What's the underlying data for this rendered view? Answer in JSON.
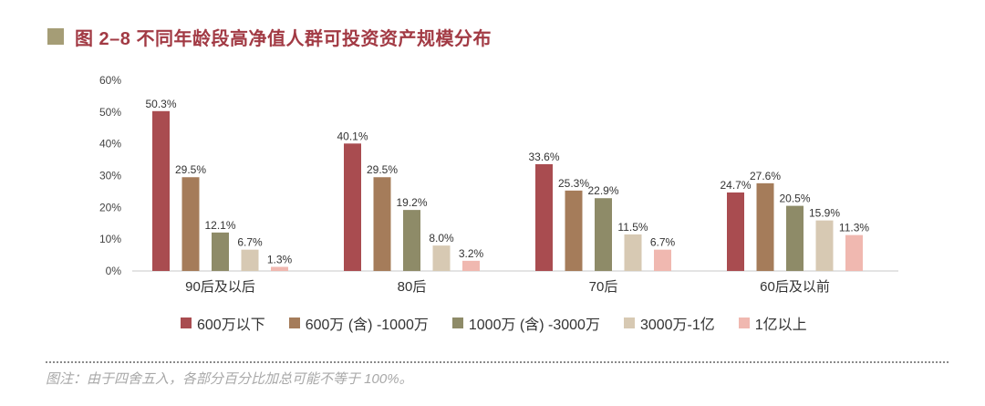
{
  "title": {
    "label": "图 2–8  不同年龄段高净值人群可投资资产规模分布",
    "marker_color": "#a59d76",
    "color": "#a23a44"
  },
  "chart_data": {
    "type": "bar",
    "categories": [
      "90后及以后",
      "80后",
      "70后",
      "60后及以前"
    ],
    "series": [
      {
        "name": "600万以下",
        "color": "#a94c50",
        "values": [
          50.3,
          40.1,
          33.6,
          24.7
        ],
        "labels": [
          "50.3%",
          "40.1%",
          "33.6%",
          "24.7%"
        ]
      },
      {
        "name": "600万 (含) -1000万",
        "color": "#a57c5a",
        "values": [
          29.5,
          29.5,
          25.3,
          27.6
        ],
        "labels": [
          "29.5%",
          "29.5%",
          "25.3%",
          "27.6%"
        ]
      },
      {
        "name": "1000万 (含) -3000万",
        "color": "#8e8b68",
        "values": [
          12.1,
          19.2,
          22.9,
          20.5
        ],
        "labels": [
          "12.1%",
          "19.2%",
          "22.9%",
          "20.5%"
        ]
      },
      {
        "name": "3000万-1亿",
        "color": "#d7c9b3",
        "values": [
          6.7,
          8.0,
          11.5,
          15.9
        ],
        "labels": [
          "6.7%",
          "8.0%",
          "11.5%",
          "15.9%"
        ]
      },
      {
        "name": "1亿以上",
        "color": "#f0b8b0",
        "values": [
          1.3,
          3.2,
          6.7,
          11.3
        ],
        "labels": [
          "1.3%",
          "3.2%",
          "6.7%",
          "11.3%"
        ]
      }
    ],
    "y_ticks": [
      "0%",
      "10%",
      "20%",
      "30%",
      "40%",
      "50%",
      "60%"
    ],
    "ylim": [
      0,
      60
    ],
    "xlabel": "",
    "ylabel": "",
    "grid": false,
    "legend_position": "bottom"
  },
  "footnote": "图注：由于四舍五入，各部分百分比加总可能不等于 100%。"
}
